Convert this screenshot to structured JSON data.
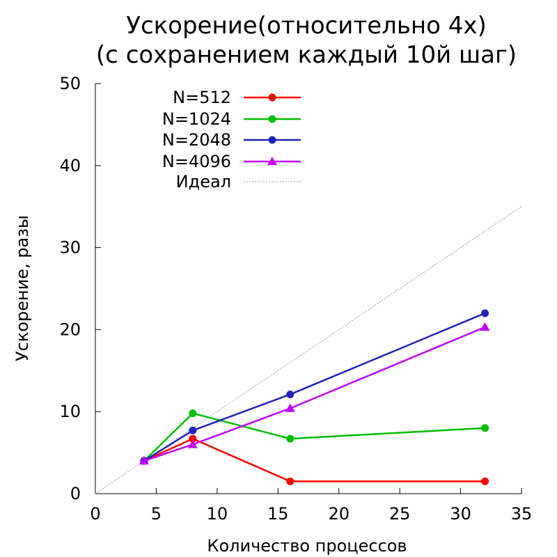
{
  "chart_data": {
    "type": "line",
    "title_line1": "Ускорение(относительно 4x)",
    "title_line2": "(с сохранением каждый 10й шаг)",
    "xlabel": "Количество процессов",
    "ylabel": "Ускорение, разы",
    "xlim": [
      0,
      35
    ],
    "ylim": [
      0,
      50
    ],
    "x_ticks": [
      "0",
      "5",
      "10",
      "15",
      "20",
      "25",
      "30",
      "35"
    ],
    "y_ticks": [
      "0",
      "10",
      "20",
      "30",
      "40",
      "50"
    ],
    "grid": false,
    "legend_position": "top-left",
    "x": [
      4,
      8,
      16,
      32
    ],
    "series": [
      {
        "name": "N=512",
        "color": "#ff0000",
        "marker": "circle",
        "values": [
          4.0,
          6.7,
          1.5,
          1.5
        ]
      },
      {
        "name": "N=1024",
        "color": "#00c000",
        "marker": "circle",
        "values": [
          4.0,
          9.8,
          6.7,
          8.0
        ]
      },
      {
        "name": "N=2048",
        "color": "#2222bb",
        "marker": "circle",
        "values": [
          4.0,
          7.7,
          12.1,
          22.0
        ]
      },
      {
        "name": "N=4096",
        "color": "#c000ff",
        "marker": "triangle",
        "values": [
          4.0,
          6.0,
          10.4,
          20.3
        ]
      }
    ],
    "ideal": {
      "name": "Идеал",
      "color": "#999999",
      "x": [
        0,
        35
      ],
      "y": [
        0,
        35
      ]
    }
  }
}
